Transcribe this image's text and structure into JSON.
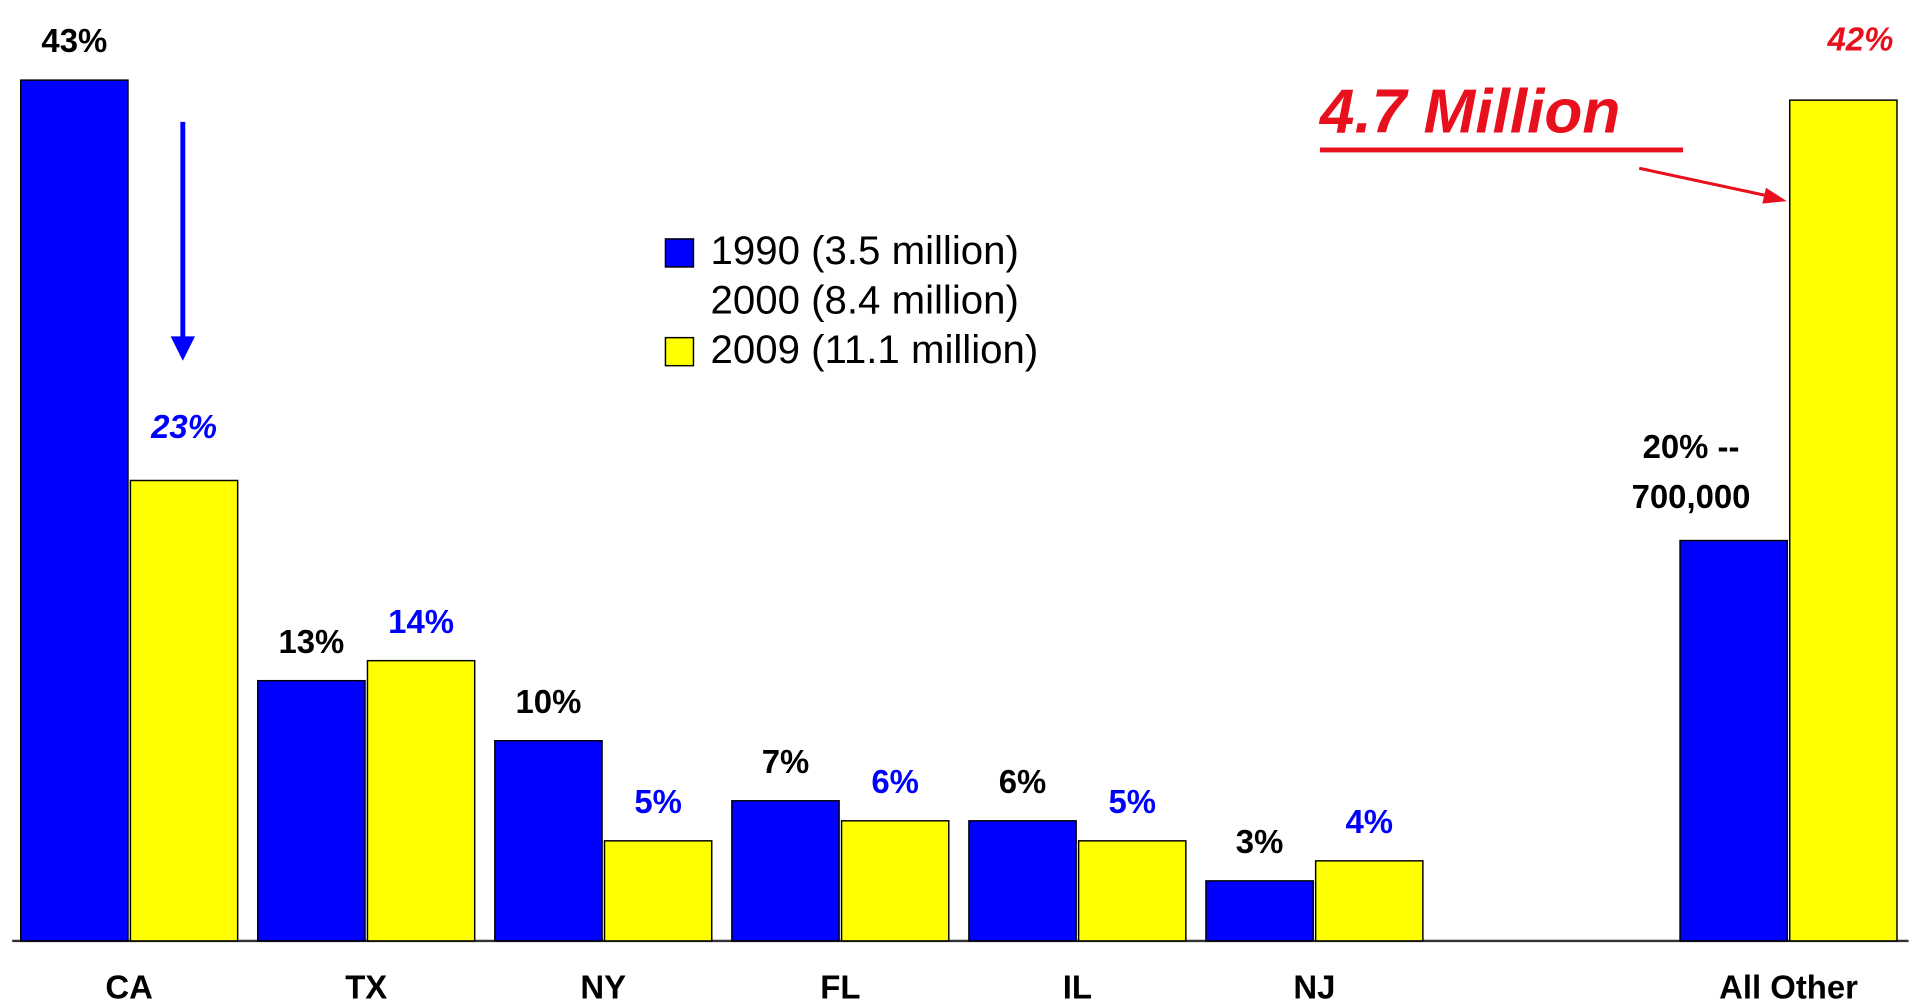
{
  "chart_data": {
    "type": "bar",
    "categories": [
      "CA",
      "TX",
      "NY",
      "FL",
      "IL",
      "NJ",
      null,
      "All Other"
    ],
    "series": [
      {
        "name": "1990 (3.5 million)",
        "color": "#0000ff",
        "values": [
          43,
          13,
          10,
          7,
          6,
          3,
          null,
          20
        ],
        "value_labels": [
          "43%",
          "13%",
          "10%",
          "7%",
          "6%",
          "3%",
          null,
          "20% --\n700,000"
        ]
      },
      {
        "name": "2000 (8.4 million)",
        "color": "#ffffff",
        "values": [
          null,
          null,
          null,
          null,
          null,
          null,
          null,
          null
        ]
      },
      {
        "name": "2009 (11.1 million)",
        "color": "#ffff00",
        "values": [
          23,
          14,
          5,
          6,
          5,
          4,
          null,
          42
        ],
        "value_labels": [
          "23%",
          "14%",
          "5%",
          "6%",
          "5%",
          "4%",
          null,
          "42%"
        ]
      }
    ],
    "annotations": [
      "4.7 Million"
    ],
    "ylim": [
      0,
      47
    ]
  }
}
